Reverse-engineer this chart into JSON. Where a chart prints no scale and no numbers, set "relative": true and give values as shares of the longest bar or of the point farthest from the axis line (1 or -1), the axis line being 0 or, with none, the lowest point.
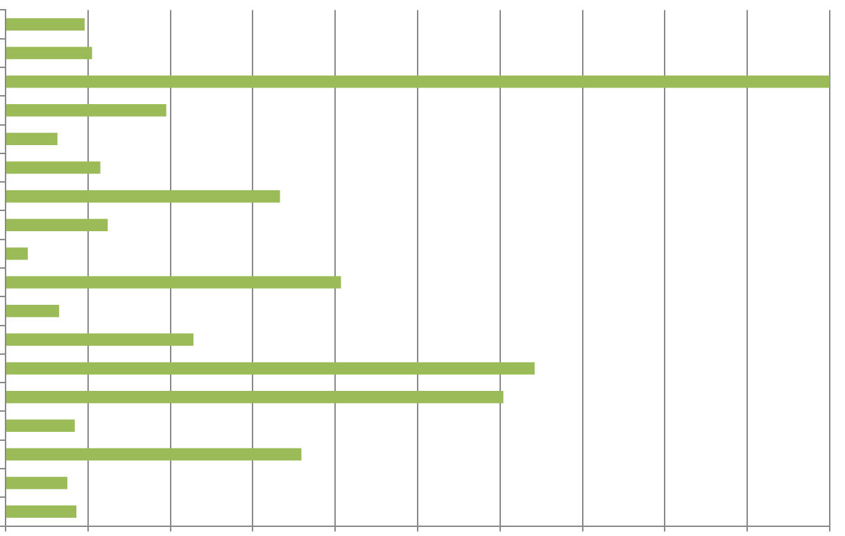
{
  "chart_data": {
    "type": "bar",
    "orientation": "horizontal",
    "relative": true,
    "grid": "x",
    "color": "#9bbb59",
    "categories": [
      null,
      null,
      null,
      null,
      null,
      null,
      null,
      null,
      null,
      null,
      null,
      null,
      null,
      null,
      null,
      null,
      null,
      null
    ],
    "values": [
      0.096,
      0.105,
      1,
      0.195,
      0.063,
      0.115,
      0.333,
      0.124,
      0.027,
      0.407,
      0.065,
      0.228,
      0.642,
      0.604,
      0.084,
      0.359,
      0.075,
      0.086
    ]
  }
}
